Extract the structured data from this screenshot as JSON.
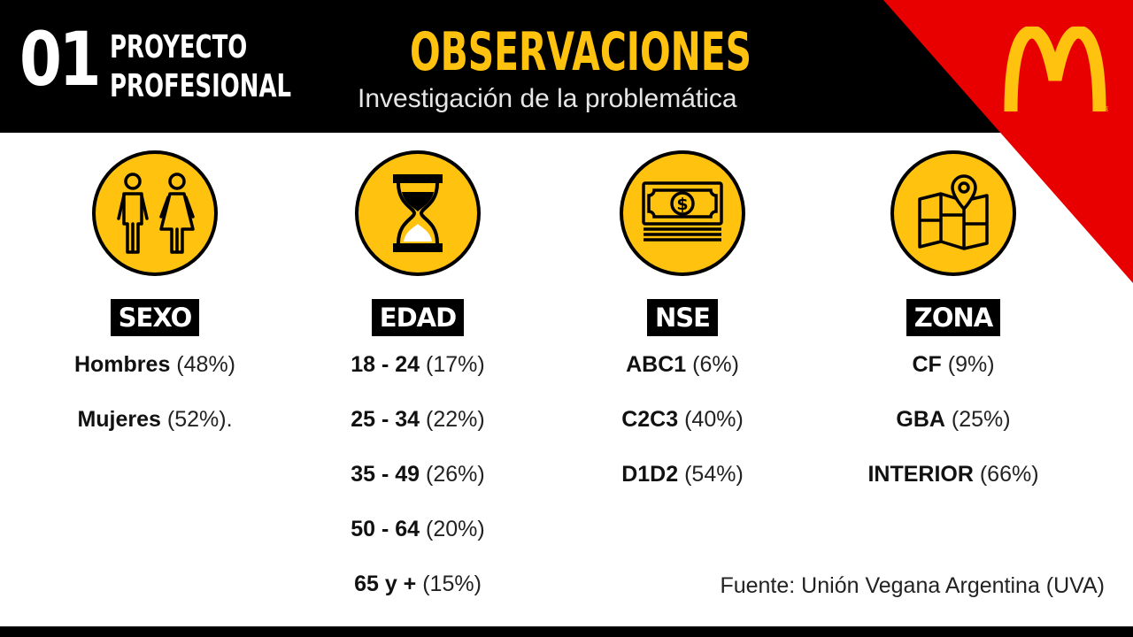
{
  "header": {
    "number": "01",
    "project_line1": "PROYECTO",
    "project_line2": "PROFESIONAL",
    "title": "OBSERVACIONES",
    "subtitle": "Investigación de la problemática"
  },
  "colors": {
    "accent": "#FFC20E",
    "brand_red": "#E80000",
    "black": "#000000"
  },
  "columns": [
    {
      "icon": "people-icon",
      "label": "SEXO",
      "items": [
        {
          "bold": "Hombres",
          "rest": " (48%)"
        },
        {
          "bold": "Mujeres",
          "rest": " (52%)."
        }
      ]
    },
    {
      "icon": "hourglass-icon",
      "label": "EDAD",
      "items": [
        {
          "bold": "18 - 24",
          "rest": " (17%)"
        },
        {
          "bold": "25 - 34",
          "rest": " (22%)"
        },
        {
          "bold": "35 - 49",
          "rest": " (26%)"
        },
        {
          "bold": "50 - 64",
          "rest": " (20%)"
        },
        {
          "bold": "65 y +",
          "rest": " (15%)"
        }
      ]
    },
    {
      "icon": "money-icon",
      "label": "NSE",
      "items": [
        {
          "bold": "ABC1",
          "rest": " (6%)"
        },
        {
          "bold": "C2C3",
          "rest": " (40%)"
        },
        {
          "bold": "D1D2",
          "rest": " (54%)"
        }
      ]
    },
    {
      "icon": "map-pin-icon",
      "label": "ZONA",
      "items": [
        {
          "bold": "CF",
          "rest": " (9%)"
        },
        {
          "bold": "GBA",
          "rest": " (25%)"
        },
        {
          "bold": "INTERIOR",
          "rest": " (66%)"
        }
      ]
    }
  ],
  "source": "Fuente: Unión Vegana Argentina (UVA)"
}
